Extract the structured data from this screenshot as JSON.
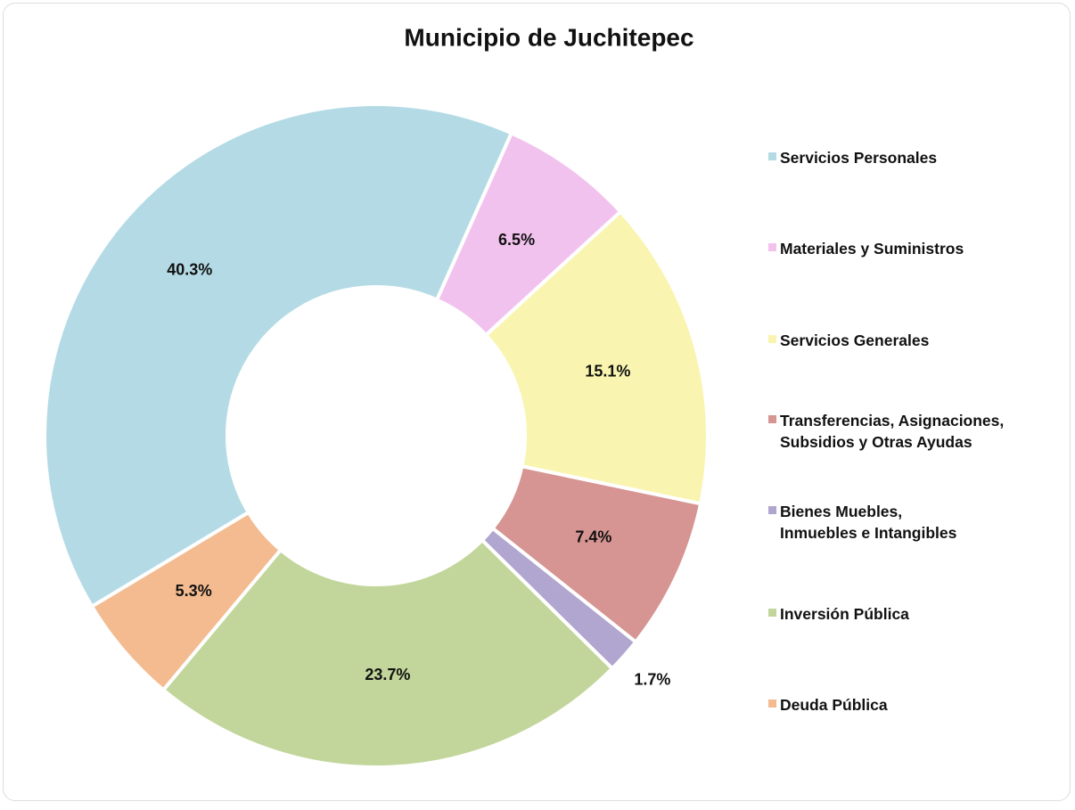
{
  "chart_data": {
    "type": "donut",
    "title": "Municipio de Juchitepec",
    "categories": [
      "Servicios Personales",
      "Materiales y Suministros",
      "Servicios Generales",
      "Transferencias, Asignaciones,\nSubsidios y Otras Ayudas",
      "Bienes Muebles,\nInmuebles e Intangibles",
      "Inversión Pública",
      "Deuda Pública"
    ],
    "values": [
      40.3,
      6.5,
      15.1,
      7.4,
      1.7,
      23.7,
      5.3
    ],
    "value_labels": [
      "40.3%",
      "6.5%",
      "15.1%",
      "7.4%",
      "1.7%",
      "23.7%",
      "5.3%"
    ],
    "colors": [
      "#b4dbe5",
      "#f2c2ee",
      "#f9f5b0",
      "#d69592",
      "#b1a6cf",
      "#c2d69b",
      "#f3bb8f"
    ],
    "legend": "right"
  }
}
